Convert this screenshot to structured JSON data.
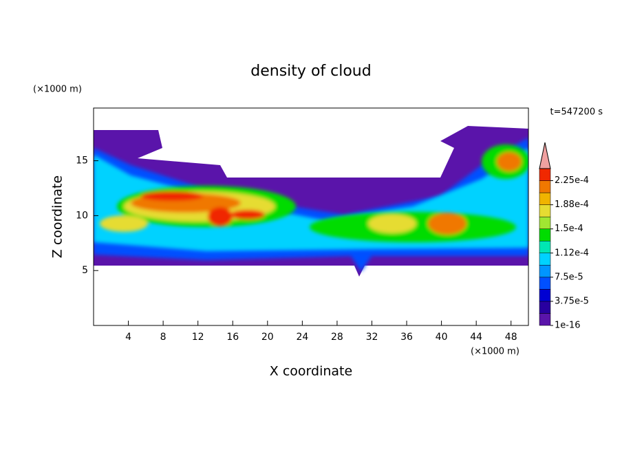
{
  "chart_data": {
    "type": "contour",
    "title": "density of cloud",
    "time_label": "t=547200 s",
    "x_label": "X coordinate",
    "y_label": "Z coordinate",
    "x_unit": "(×1000 m)",
    "y_unit": "(×1000 m)",
    "xlim": [
      0,
      50
    ],
    "xticks": [
      4,
      8,
      12,
      16,
      20,
      24,
      28,
      32,
      36,
      40,
      44,
      48
    ],
    "ylim": [
      0,
      19.8
    ],
    "yticks": [
      5,
      10,
      15
    ],
    "colorbar": {
      "lim": [
        1e-16,
        0.00024375
      ],
      "colors": [
        "#5a14aa",
        "#2800a0",
        "#0000d2",
        "#0050ff",
        "#0096ff",
        "#00d2ff",
        "#00e6b4",
        "#00dc00",
        "#a0e632",
        "#e6dc32",
        "#f0b400",
        "#f07800",
        "#f02800"
      ],
      "extend_color": "#f0a0a0",
      "ticks": [
        {
          "value": 1e-16,
          "label": "1e-16"
        },
        {
          "value": 3.75e-05,
          "label": "3.75e-5"
        },
        {
          "value": 7.5e-05,
          "label": "7.5e-5"
        },
        {
          "value": 0.0001125,
          "label": "1.12e-4"
        },
        {
          "value": 0.00015,
          "label": "1.5e-4"
        },
        {
          "value": 0.0001875,
          "label": "1.88e-4"
        },
        {
          "value": 0.000225,
          "label": "2.25e-4"
        }
      ]
    }
  }
}
